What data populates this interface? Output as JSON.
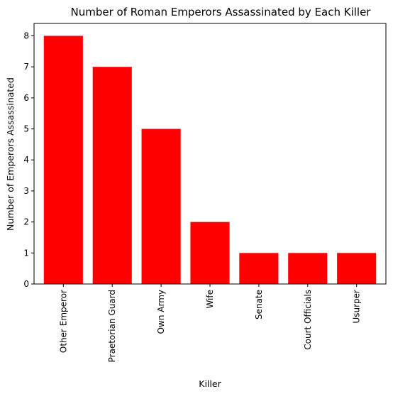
{
  "chart_data": {
    "type": "bar",
    "title": "Number of Roman Emperors Assassinated by Each Killer",
    "xlabel": "Killer",
    "ylabel": "Number of Emperors Assassinated",
    "categories": [
      "Other Emperor",
      "Praetorian Guard",
      "Own Army",
      "Wife",
      "Senate",
      "Court Officials",
      "Usurper"
    ],
    "values": [
      8,
      7,
      5,
      2,
      1,
      1,
      1
    ],
    "ylim": [
      0,
      8.4
    ],
    "yticks": [
      0,
      1,
      2,
      3,
      4,
      5,
      6,
      7,
      8
    ],
    "bar_color": "#ff0000",
    "grid": false,
    "legend": false
  }
}
